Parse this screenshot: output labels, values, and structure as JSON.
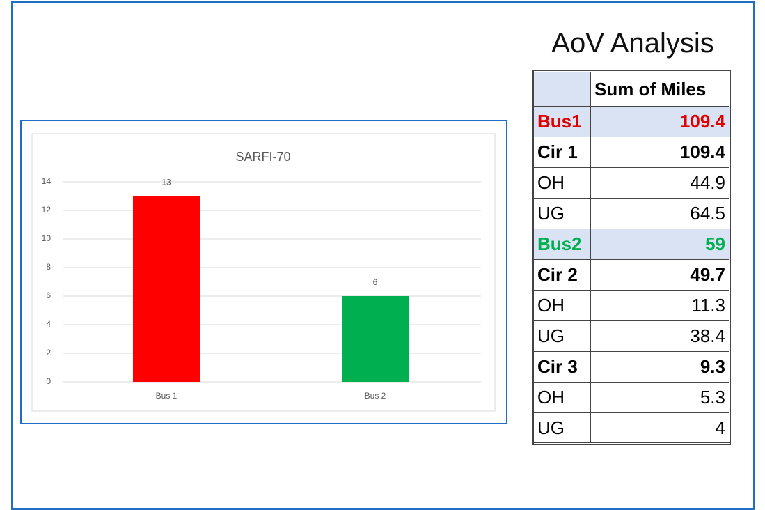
{
  "chart_data": {
    "type": "bar",
    "title": "SARFI-70",
    "categories": [
      "Bus 1",
      "Bus 2"
    ],
    "values": [
      13,
      6
    ],
    "colors": [
      "#ff0000",
      "#00b050"
    ],
    "ylim": [
      0,
      14
    ],
    "yticks": [
      0,
      2,
      4,
      6,
      8,
      10,
      12,
      14
    ],
    "grid": true
  },
  "table": {
    "title": "AoV Analysis",
    "column": "Sum of Miles",
    "rows": [
      {
        "label": "Bus1",
        "value": 109.4,
        "bold": true,
        "color": "#e00000",
        "shaded": true
      },
      {
        "label": "Cir 1",
        "value": 109.4,
        "bold": true
      },
      {
        "label": "OH",
        "value": 44.9
      },
      {
        "label": "UG",
        "value": 64.5
      },
      {
        "label": "Bus2",
        "value": 59,
        "bold": true,
        "color": "#00b050",
        "shaded": true
      },
      {
        "label": "Cir 2",
        "value": 49.7,
        "bold": true
      },
      {
        "label": "OH",
        "value": 11.3
      },
      {
        "label": "UG",
        "value": 38.4
      },
      {
        "label": "Cir 3",
        "value": 9.3,
        "bold": true
      },
      {
        "label": "OH",
        "value": 5.3
      },
      {
        "label": "UG",
        "value": 4
      }
    ]
  }
}
